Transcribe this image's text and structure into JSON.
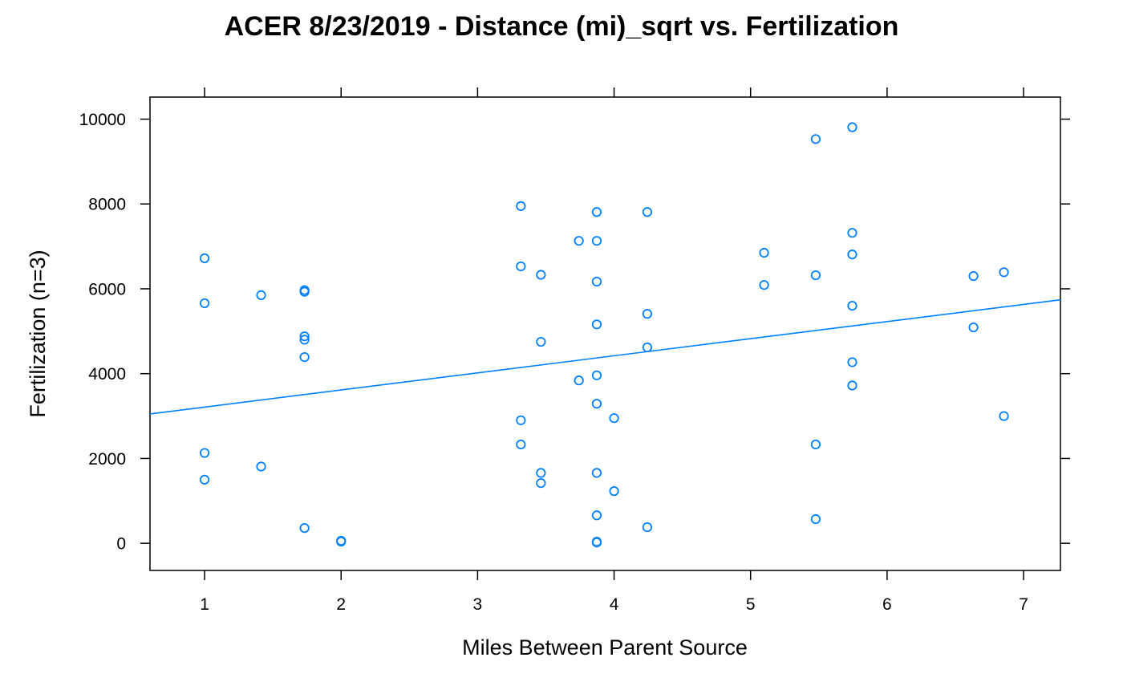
{
  "chart_data": {
    "type": "scatter",
    "title": "ACER 8/23/2019 - Distance (mi)_sqrt vs. Fertilization",
    "xlabel": "Miles Between Parent Source",
    "ylabel": "Fertilization (n=3)",
    "xlim": [
      0.6,
      7.27
    ],
    "ylim": [
      -640,
      10520
    ],
    "xticks": [
      1,
      2,
      3,
      4,
      5,
      6,
      7
    ],
    "yticks": [
      0,
      2000,
      4000,
      6000,
      8000,
      10000
    ],
    "grid": false,
    "legend": "none",
    "colors": {
      "points": "#0080FF",
      "fit_line": "#0080FF"
    },
    "series": [
      {
        "x": [
          1.0,
          1.0,
          1.0,
          1.0,
          1.414,
          1.414,
          1.732,
          1.732,
          1.732,
          1.732,
          1.732,
          1.732,
          2.0,
          2.0,
          3.317,
          3.317,
          3.317,
          3.317,
          3.464,
          3.464,
          3.464,
          3.464,
          3.742,
          3.742,
          3.873,
          3.873,
          3.873,
          3.873,
          3.873,
          3.873,
          3.873,
          3.873,
          3.873,
          3.873,
          4.0,
          4.0,
          4.243,
          4.243,
          4.243,
          4.243,
          5.099,
          5.099,
          5.477,
          5.477,
          5.477,
          5.477,
          5.745,
          5.745,
          5.745,
          5.745,
          5.745,
          5.745,
          6.633,
          6.633,
          6.856,
          6.856
        ],
        "y": [
          6720,
          5660,
          2130,
          1500,
          5850,
          1810,
          5970,
          5930,
          4880,
          4800,
          4390,
          360,
          60,
          40,
          7950,
          6530,
          2900,
          2330,
          6330,
          4750,
          1660,
          1420,
          7130,
          3840,
          7810,
          7130,
          6170,
          5160,
          3960,
          3290,
          1660,
          660,
          40,
          20,
          2950,
          1230,
          7810,
          5410,
          4620,
          380,
          6850,
          6090,
          9530,
          6320,
          2330,
          570,
          9810,
          7320,
          6810,
          5600,
          4270,
          3720,
          6300,
          5090,
          6390,
          3000
        ]
      }
    ],
    "fit_line": {
      "x": [
        0.6,
        7.27
      ],
      "y": [
        3050,
        5740
      ]
    }
  }
}
